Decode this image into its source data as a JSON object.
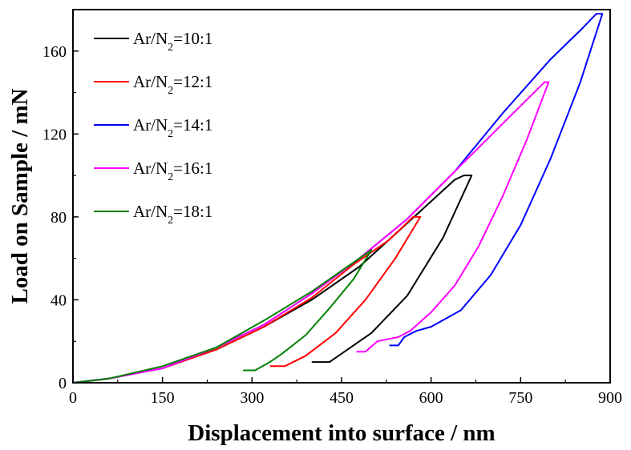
{
  "chart_data": {
    "type": "line",
    "title": "",
    "xlabel": "Displacement into surface / nm",
    "ylabel": "Load on Sample / mN",
    "xlim": [
      0,
      900
    ],
    "ylim": [
      0,
      180
    ],
    "xticks": [
      0,
      150,
      300,
      450,
      600,
      750,
      900
    ],
    "yticks": [
      0,
      40,
      80,
      120,
      160
    ],
    "xtick_labels": [
      "0",
      "150",
      "300",
      "450",
      "600",
      "750",
      "900"
    ],
    "ytick_labels": [
      "0",
      "40",
      "80",
      "120",
      "160"
    ],
    "grid": false,
    "legend_position": "top-left",
    "series": [
      {
        "name": "Ar/N2=10:1",
        "legend_prefix": "Ar/N",
        "legend_sub": "2",
        "legend_suffix": "=10:1",
        "color": "#000000",
        "points": [
          [
            0,
            0
          ],
          [
            60,
            2
          ],
          [
            150,
            7
          ],
          [
            240,
            16
          ],
          [
            320,
            27
          ],
          [
            400,
            40
          ],
          [
            480,
            56
          ],
          [
            560,
            77
          ],
          [
            640,
            98
          ],
          [
            655,
            100
          ],
          [
            668,
            100
          ],
          [
            620,
            70
          ],
          [
            560,
            42
          ],
          [
            500,
            24
          ],
          [
            460,
            16
          ],
          [
            430,
            10
          ],
          [
            420,
            10
          ],
          [
            400,
            10
          ]
        ]
      },
      {
        "name": "Ar/N2=12:1",
        "legend_prefix": "Ar/N",
        "legend_sub": "2",
        "legend_suffix": "=12:1",
        "color": "#ff0000",
        "points": [
          [
            0,
            0
          ],
          [
            60,
            2
          ],
          [
            150,
            7
          ],
          [
            240,
            16
          ],
          [
            320,
            27
          ],
          [
            400,
            41
          ],
          [
            470,
            57
          ],
          [
            530,
            69
          ],
          [
            570,
            80
          ],
          [
            582,
            80
          ],
          [
            540,
            60
          ],
          [
            490,
            40
          ],
          [
            440,
            24
          ],
          [
            390,
            13
          ],
          [
            355,
            8
          ],
          [
            330,
            8
          ]
        ]
      },
      {
        "name": "Ar/N2=14:1",
        "legend_prefix": "Ar/N",
        "legend_sub": "2",
        "legend_suffix": "=14:1",
        "color": "#0000ff",
        "points": [
          [
            0,
            0
          ],
          [
            60,
            2
          ],
          [
            150,
            7
          ],
          [
            240,
            17
          ],
          [
            320,
            28
          ],
          [
            400,
            43
          ],
          [
            480,
            60
          ],
          [
            560,
            79
          ],
          [
            640,
            102
          ],
          [
            720,
            130
          ],
          [
            800,
            156
          ],
          [
            850,
            170
          ],
          [
            877,
            178
          ],
          [
            887,
            178
          ],
          [
            850,
            145
          ],
          [
            800,
            108
          ],
          [
            750,
            76
          ],
          [
            700,
            52
          ],
          [
            650,
            35
          ],
          [
            600,
            27
          ],
          [
            575,
            25
          ],
          [
            555,
            22
          ],
          [
            545,
            18
          ],
          [
            530,
            18
          ]
        ]
      },
      {
        "name": "Ar/N2=16:1",
        "legend_prefix": "Ar/N",
        "legend_sub": "2",
        "legend_suffix": "=16:1",
        "color": "#ff00ff",
        "points": [
          [
            0,
            0
          ],
          [
            60,
            2
          ],
          [
            150,
            7
          ],
          [
            240,
            17
          ],
          [
            320,
            28
          ],
          [
            400,
            43
          ],
          [
            480,
            60
          ],
          [
            560,
            79
          ],
          [
            640,
            102
          ],
          [
            720,
            125
          ],
          [
            790,
            145
          ],
          [
            797,
            145
          ],
          [
            760,
            117
          ],
          [
            720,
            90
          ],
          [
            680,
            66
          ],
          [
            640,
            47
          ],
          [
            600,
            34
          ],
          [
            565,
            25
          ],
          [
            545,
            22
          ],
          [
            510,
            20
          ],
          [
            490,
            15
          ],
          [
            475,
            15
          ]
        ]
      },
      {
        "name": "Ar/N2=18:1",
        "legend_prefix": "Ar/N",
        "legend_sub": "2",
        "legend_suffix": "=18:1",
        "color": "#008000",
        "points": [
          [
            0,
            0
          ],
          [
            60,
            2
          ],
          [
            150,
            8
          ],
          [
            240,
            17
          ],
          [
            320,
            30
          ],
          [
            400,
            44
          ],
          [
            460,
            56
          ],
          [
            500,
            64
          ],
          [
            470,
            50
          ],
          [
            430,
            36
          ],
          [
            390,
            23
          ],
          [
            350,
            14
          ],
          [
            330,
            10
          ],
          [
            305,
            6
          ],
          [
            285,
            6
          ]
        ]
      }
    ]
  }
}
